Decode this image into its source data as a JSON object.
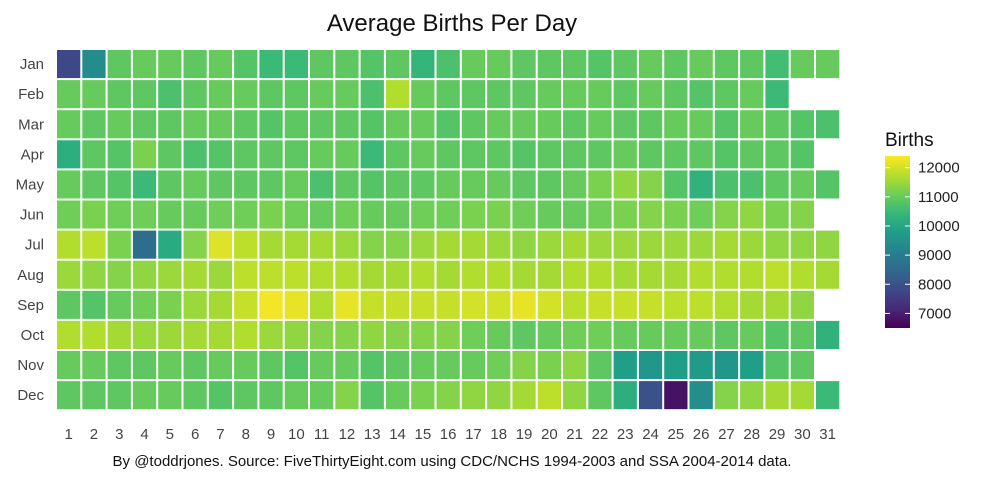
{
  "chart_data": {
    "type": "heatmap",
    "title": "Average Births Per Day",
    "caption": "By @toddrjones. Source: FiveThirtyEight.com using CDC/NCHS 1994-2003 and SSA 2004-2014 data.",
    "x_categories": [
      "1",
      "2",
      "3",
      "4",
      "5",
      "6",
      "7",
      "8",
      "9",
      "10",
      "11",
      "12",
      "13",
      "14",
      "15",
      "16",
      "17",
      "18",
      "19",
      "20",
      "21",
      "22",
      "23",
      "24",
      "25",
      "26",
      "27",
      "28",
      "29",
      "30",
      "31"
    ],
    "y_categories": [
      "Jan",
      "Feb",
      "Mar",
      "Apr",
      "May",
      "Jun",
      "Jul",
      "Aug",
      "Sep",
      "Oct",
      "Nov",
      "Dec"
    ],
    "legend": {
      "title": "Births",
      "ticks": [
        "12000",
        "11000",
        "10000",
        "9000",
        "8000",
        "7000"
      ],
      "tick_values": [
        12000,
        11000,
        10000,
        9000,
        8000,
        7000
      ],
      "range": [
        6500,
        12400
      ]
    },
    "values": [
      [
        7800,
        9350,
        10900,
        11000,
        11000,
        10900,
        11000,
        10800,
        10500,
        10500,
        10900,
        10900,
        10800,
        10900,
        10400,
        10700,
        11000,
        11000,
        10900,
        10900,
        10900,
        10800,
        10900,
        11000,
        10900,
        11000,
        10900,
        10900,
        10600,
        11000,
        11000
      ],
      [
        11000,
        11000,
        10900,
        10900,
        10700,
        10900,
        11000,
        11000,
        10900,
        10900,
        11000,
        11000,
        10700,
        11700,
        11000,
        10900,
        10900,
        10900,
        10900,
        11000,
        11000,
        11000,
        10900,
        11000,
        10900,
        10800,
        10900,
        11000,
        10500,
        null,
        null
      ],
      [
        11000,
        10900,
        11000,
        10900,
        10900,
        11000,
        11000,
        10900,
        10800,
        10900,
        10900,
        10900,
        10800,
        11000,
        11000,
        10800,
        10900,
        11000,
        11000,
        11000,
        10900,
        11000,
        10900,
        10900,
        11000,
        11000,
        10800,
        11000,
        10900,
        10800,
        10700
      ],
      [
        10200,
        10900,
        10800,
        11200,
        10900,
        10700,
        10800,
        10900,
        10900,
        10900,
        11000,
        11000,
        10500,
        10900,
        11000,
        10900,
        10900,
        10900,
        10800,
        10900,
        10900,
        10900,
        11000,
        10900,
        10900,
        10900,
        10800,
        10900,
        10900,
        10800,
        null
      ],
      [
        11000,
        10900,
        10800,
        10500,
        10900,
        11000,
        10900,
        10900,
        10900,
        11000,
        10700,
        10900,
        10800,
        10900,
        10900,
        11000,
        11000,
        11000,
        10900,
        10900,
        11000,
        11200,
        11400,
        11300,
        10800,
        10300,
        10700,
        10700,
        10900,
        11000,
        10800
      ],
      [
        11100,
        11200,
        11100,
        11100,
        11000,
        11000,
        11100,
        11100,
        11200,
        11100,
        11000,
        11100,
        11000,
        11000,
        11100,
        11100,
        11200,
        11200,
        11100,
        11000,
        11000,
        11100,
        11200,
        11300,
        11200,
        11100,
        11300,
        11400,
        11200,
        11300,
        null
      ],
      [
        11700,
        11800,
        11200,
        8600,
        10100,
        11300,
        12100,
        11800,
        11600,
        11600,
        11600,
        11500,
        11300,
        11300,
        11500,
        11600,
        11600,
        11500,
        11400,
        11500,
        11600,
        11500,
        11500,
        11500,
        11500,
        11500,
        11600,
        11500,
        11400,
        11400,
        11400
      ],
      [
        11500,
        11400,
        11300,
        11400,
        11500,
        11600,
        11500,
        11800,
        11800,
        11800,
        11700,
        11700,
        11600,
        11600,
        11700,
        11600,
        11700,
        11700,
        11600,
        11600,
        11700,
        11700,
        11600,
        11600,
        11600,
        11700,
        11700,
        11700,
        11800,
        11700,
        11600
      ],
      [
        10900,
        10800,
        11000,
        11100,
        11200,
        11500,
        11600,
        11900,
        12300,
        12200,
        11700,
        12200,
        11900,
        11900,
        11900,
        11900,
        12000,
        12000,
        12200,
        12000,
        11800,
        11900,
        11900,
        11900,
        11800,
        11800,
        11700,
        11600,
        11600,
        11400,
        null
      ],
      [
        11700,
        11700,
        11600,
        11500,
        11500,
        11600,
        11600,
        11700,
        11500,
        11400,
        11300,
        11300,
        11400,
        11300,
        11300,
        11300,
        11100,
        11000,
        10900,
        11000,
        11100,
        11100,
        11000,
        11000,
        11000,
        11000,
        10900,
        11000,
        10800,
        10900,
        10300
      ],
      [
        11000,
        11000,
        10900,
        10900,
        11000,
        10900,
        11000,
        11000,
        10900,
        10800,
        11000,
        11000,
        10800,
        10900,
        11000,
        11000,
        11000,
        11100,
        11300,
        11200,
        11400,
        10900,
        9800,
        9600,
        9800,
        9700,
        9600,
        9800,
        10800,
        10900,
        null
      ],
      [
        10900,
        10900,
        10900,
        11000,
        11000,
        10900,
        10800,
        10900,
        10900,
        11000,
        11000,
        11300,
        10800,
        11000,
        11200,
        11300,
        11400,
        11400,
        11600,
        11800,
        11400,
        10900,
        10200,
        8000,
        6800,
        9400,
        11300,
        11400,
        11600,
        11600,
        10500
      ]
    ]
  }
}
